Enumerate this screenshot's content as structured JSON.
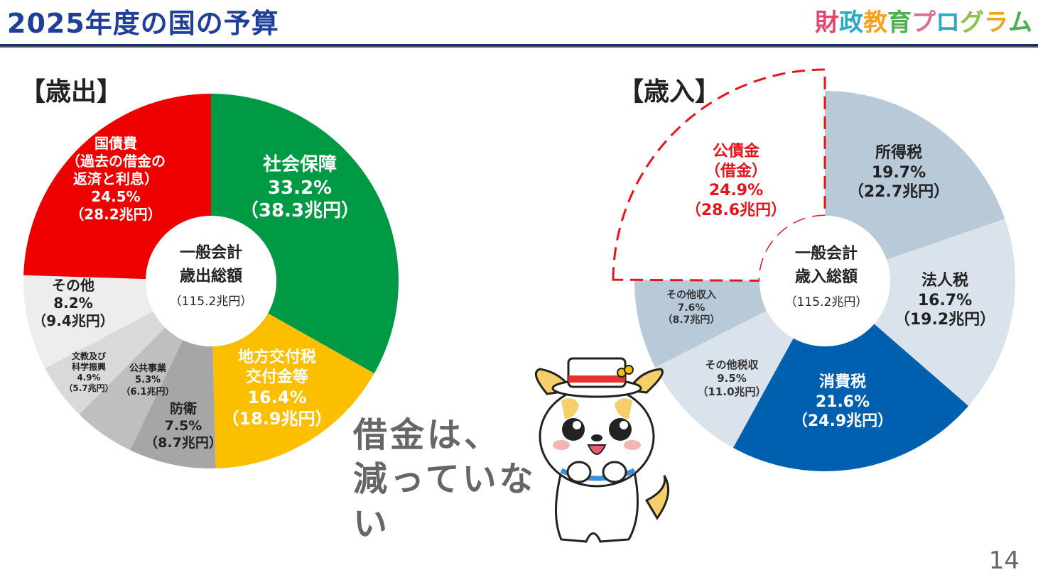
{
  "header": {
    "title": "2025年度の国の予算",
    "brand": [
      {
        "ch": "財",
        "color": "#e0476c"
      },
      {
        "ch": "政",
        "color": "#2aa9c9"
      },
      {
        "ch": "教",
        "color": "#f2a21d"
      },
      {
        "ch": "育",
        "color": "#4caf50"
      },
      {
        "ch": "プ",
        "color": "#e06a9a"
      },
      {
        "ch": "ロ",
        "color": "#2aa9c9"
      },
      {
        "ch": "グ",
        "color": "#8bc34a"
      },
      {
        "ch": "ラ",
        "color": "#f2a21d"
      },
      {
        "ch": "ム",
        "color": "#4caf50"
      }
    ]
  },
  "expenditure": {
    "section_title": "【歳出】",
    "center": {
      "line1": "一般会計",
      "line2": "歳出総額",
      "total": "（115.2兆円）"
    },
    "slices": [
      {
        "key": "social",
        "value": 33.2,
        "color": "#009a44",
        "lines": [
          "社会保障",
          "33.2%",
          "（38.3兆円）"
        ]
      },
      {
        "key": "local",
        "value": 16.4,
        "color": "#fcbf00",
        "lines": [
          "地方交付税",
          "交付金等",
          "16.4%",
          "（18.9兆円）"
        ]
      },
      {
        "key": "defense",
        "value": 7.5,
        "color": "#a6a6a6",
        "lines": [
          "防衛",
          "7.5%",
          "（8.7兆円）"
        ]
      },
      {
        "key": "public",
        "value": 5.3,
        "color": "#bfbfbf",
        "lines": [
          "公共事業",
          "5.3%",
          "（6.1兆円）"
        ]
      },
      {
        "key": "education",
        "value": 4.9,
        "color": "#d9d9d9",
        "lines": [
          "文教及び",
          "科学振興",
          "4.9%",
          "（5.7兆円）"
        ]
      },
      {
        "key": "other",
        "value": 8.2,
        "color": "#ededed",
        "lines": [
          "その他",
          "8.2%",
          "（9.4兆円）"
        ]
      },
      {
        "key": "debt",
        "value": 24.5,
        "color": "#ee0000",
        "lines": [
          "国債費",
          "（過去の借金の",
          "返済と利息）",
          "24.5%",
          "（28.2兆円）"
        ]
      }
    ]
  },
  "revenue": {
    "section_title": "【歳入】",
    "center": {
      "line1": "一般会計",
      "line2": "歳入総額",
      "total": "（115.2兆円）"
    },
    "slices": [
      {
        "key": "income",
        "value": 19.7,
        "color": "#b8cad8",
        "lines": [
          "所得税",
          "19.7%",
          "（22.7兆円）"
        ]
      },
      {
        "key": "corporate",
        "value": 16.7,
        "color": "#dae3ec",
        "lines": [
          "法人税",
          "16.7%",
          "（19.2兆円）"
        ]
      },
      {
        "key": "consumption",
        "value": 21.6,
        "color": "#0060b0",
        "lines": [
          "消費税",
          "21.6%",
          "（24.9兆円）"
        ]
      },
      {
        "key": "othertax",
        "value": 9.5,
        "color": "#dae3ec",
        "lines": [
          "その他税収",
          "9.5%",
          "（11.0兆円）"
        ]
      },
      {
        "key": "otherincome",
        "value": 7.6,
        "color": "#b8cad8",
        "lines": [
          "その他収入",
          "7.6%",
          "（8.7兆円）"
        ]
      },
      {
        "key": "bonds",
        "value": 24.9,
        "color": "#ffffff",
        "lines": [
          "公債金",
          "（借金）",
          "24.9%",
          "（28.6兆円）"
        ]
      }
    ]
  },
  "slogan": [
    "借金は、",
    "減っていな",
    "い"
  ],
  "page_number": "14"
}
